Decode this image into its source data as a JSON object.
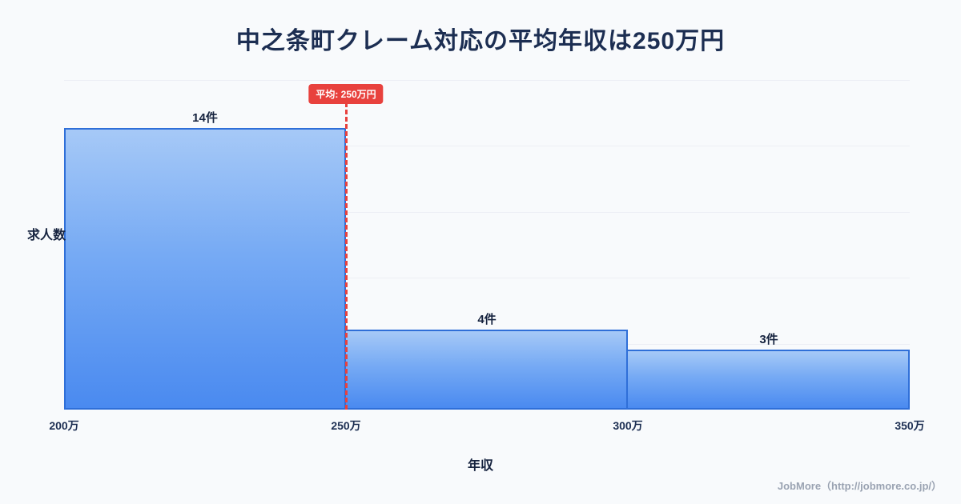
{
  "title": "中之条町クレーム対応の平均年収は250万円",
  "chart_data": {
    "type": "bar",
    "title": "中之条町クレーム対応の平均年収は250万円",
    "categories": [
      "200万-250万",
      "250万-300万",
      "300万-350万"
    ],
    "values": [
      14,
      4,
      3
    ],
    "bar_labels": [
      "14件",
      "4件",
      "3件"
    ],
    "x_tick_labels": [
      "200万",
      "250万",
      "300万",
      "350万"
    ],
    "xlabel": "年収",
    "ylabel": "求人数",
    "ylim": [
      0,
      16.4
    ],
    "grid": "horizontal",
    "legend": "none",
    "average_marker": {
      "value_label": "250万",
      "label": "平均: 250万円"
    },
    "colors": {
      "bar_top": "#a6c9f7",
      "bar_bottom": "#4a8af0",
      "bar_border": "#2f6fd8",
      "average_line": "#e8413d",
      "title_text": "#1c2e52",
      "background": "#f8fafc"
    }
  },
  "footer": {
    "credit": "JobMore（http://jobmore.co.jp/）"
  }
}
